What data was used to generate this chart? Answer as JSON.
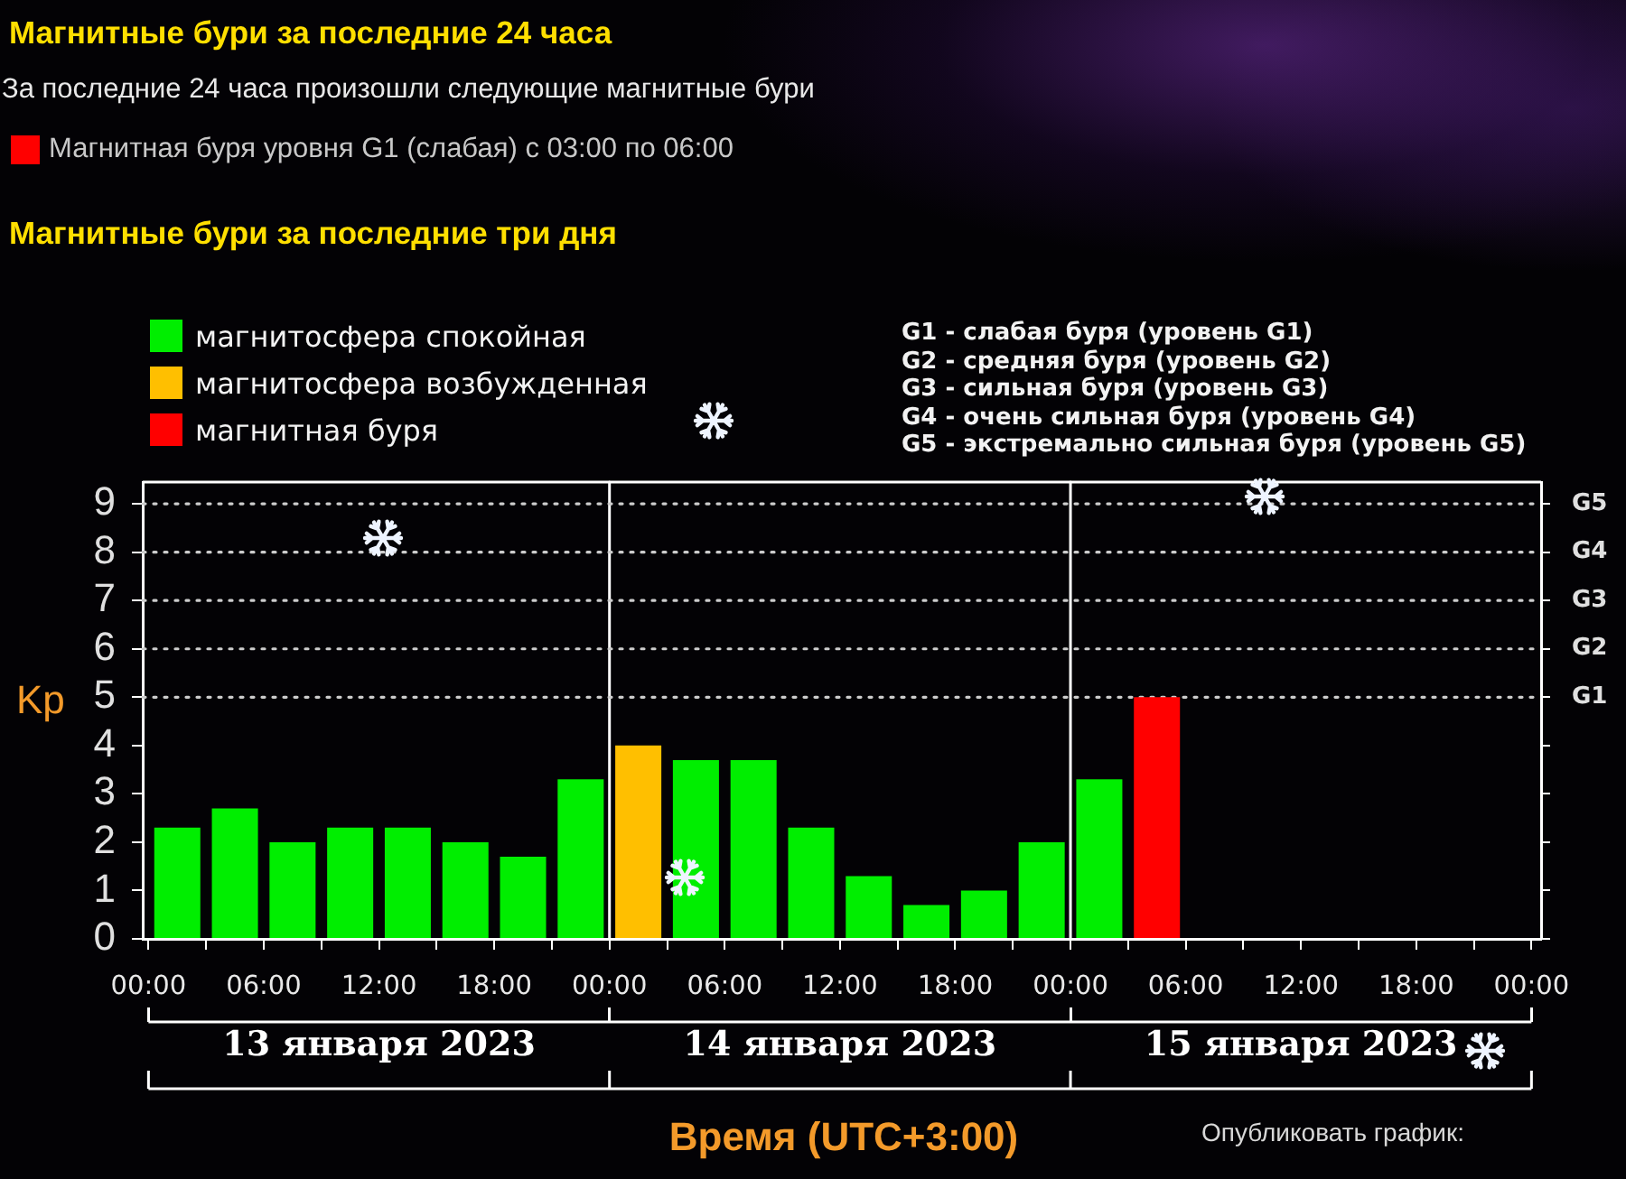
{
  "chart_data": {
    "type": "bar",
    "title": "Магнитные бури за последние 24 часа",
    "subtitle": "За последние 24 часа произошли следующие магнитные бури",
    "xlabel": "Время (UTC+3:00)",
    "ylabel": "Kp",
    "annotations": [
      "Магнитная буря уровня G1 (слабая) с 03:00 по 06:00",
      "Магнитные бури за последние три дня",
      "G1 - слабая буря (уровень G1)",
      "G2 - средняя буря (уровень G2)",
      "G3 - сильная буря (уровень G3)",
      "G4 - очень сильная буря (уровень G4)",
      "G5 - экстремально сильная буря (уровень G5)",
      "Опубликовать график:"
    ],
    "x": [
      "2023-01-13T01:30",
      "2023-01-13T04:30",
      "2023-01-13T07:30",
      "2023-01-13T10:30",
      "2023-01-13T13:30",
      "2023-01-13T16:30",
      "2023-01-13T19:30",
      "2023-01-13T22:30",
      "2023-01-14T01:30",
      "2023-01-14T04:30",
      "2023-01-14T07:30",
      "2023-01-14T10:30",
      "2023-01-14T13:30",
      "2023-01-14T16:30",
      "2023-01-14T19:30",
      "2023-01-14T22:30",
      "2023-01-15T01:30",
      "2023-01-15T04:30"
    ],
    "series": [
      {
        "name": "магнитосфера спокойная",
        "color": "#00ee00",
        "values": [
          2.3,
          2.7,
          2,
          2.3,
          2.3,
          2,
          1.7,
          3.3,
          null,
          3.7,
          3.7,
          2.3,
          1.3,
          0.7,
          1,
          2,
          3.3,
          null
        ]
      },
      {
        "name": "магнитосфера возбужденная",
        "color": "#ffbf00",
        "values": [
          null,
          null,
          null,
          null,
          null,
          null,
          null,
          null,
          4,
          null,
          null,
          null,
          null,
          null,
          null,
          null,
          null,
          null
        ]
      },
      {
        "name": "магнитная буря",
        "color": "#ff0000",
        "values": [
          null,
          null,
          null,
          null,
          null,
          null,
          null,
          null,
          null,
          null,
          null,
          null,
          null,
          null,
          null,
          null,
          null,
          5
        ]
      }
    ],
    "xlim": [
      "2023-01-12T23:42",
      "2023-01-16T00:30"
    ],
    "xticks": [
      {
        "value": "2023-01-13T00:00",
        "label": "00:00"
      },
      {
        "value": "2023-01-13T03:00",
        "label": null
      },
      {
        "value": "2023-01-13T06:00",
        "label": "06:00"
      },
      {
        "value": "2023-01-13T09:00",
        "label": null
      },
      {
        "value": "2023-01-13T12:00",
        "label": "12:00"
      },
      {
        "value": "2023-01-13T15:00",
        "label": null
      },
      {
        "value": "2023-01-13T18:00",
        "label": "18:00"
      },
      {
        "value": "2023-01-13T21:00",
        "label": null
      },
      {
        "value": "2023-01-14T00:00",
        "label": "00:00"
      },
      {
        "value": "2023-01-14T03:00",
        "label": null
      },
      {
        "value": "2023-01-14T06:00",
        "label": "06:00"
      },
      {
        "value": "2023-01-14T09:00",
        "label": null
      },
      {
        "value": "2023-01-14T12:00",
        "label": "12:00"
      },
      {
        "value": "2023-01-14T15:00",
        "label": null
      },
      {
        "value": "2023-01-14T18:00",
        "label": "18:00"
      },
      {
        "value": "2023-01-14T21:00",
        "label": null
      },
      {
        "value": "2023-01-15T00:00",
        "label": "00:00"
      },
      {
        "value": "2023-01-15T03:00",
        "label": null
      },
      {
        "value": "2023-01-15T06:00",
        "label": "06:00"
      },
      {
        "value": "2023-01-15T09:00",
        "label": null
      },
      {
        "value": "2023-01-15T12:00",
        "label": "12:00"
      },
      {
        "value": "2023-01-15T15:00",
        "label": null
      },
      {
        "value": "2023-01-15T18:00",
        "label": "18:00"
      },
      {
        "value": "2023-01-15T21:00",
        "label": null
      },
      {
        "value": "2023-01-16T00:00",
        "label": "00:00"
      }
    ],
    "x2lim": [
      "2023-01-12T23:42",
      "2023-01-16T00:30"
    ],
    "x2ticks": [
      {
        "value": "2023-01-13T00:00",
        "label": null
      },
      {
        "value": "2023-01-13T12:00",
        "label": "13 января 2023"
      },
      {
        "value": "2023-01-14T00:00",
        "label": null
      },
      {
        "value": "2023-01-14T12:00",
        "label": "14 января 2023"
      },
      {
        "value": "2023-01-15T00:00",
        "label": null
      },
      {
        "value": "2023-01-15T12:00",
        "label": "15 января 2023"
      },
      {
        "value": "2023-01-16T00:00",
        "label": null
      }
    ],
    "ylim": [
      0,
      9.45
    ],
    "yticks": [
      0,
      1,
      2,
      3,
      4,
      5,
      6,
      7,
      8,
      9
    ],
    "ref_lines": [
      {
        "axis": "x",
        "value": "2023-01-14T00:00",
        "color": "#ffffff"
      },
      {
        "axis": "x",
        "value": "2023-01-15T00:00",
        "color": "#ffffff"
      },
      {
        "axis": "y",
        "value": 5,
        "label": "G1",
        "color": "#cccccc",
        "line_style": "dotted"
      },
      {
        "axis": "y",
        "value": 6,
        "label": "G2",
        "color": "#cccccc",
        "line_style": "dotted"
      },
      {
        "axis": "y",
        "value": 7,
        "label": "G3",
        "color": "#cccccc",
        "line_style": "dotted"
      },
      {
        "axis": "y",
        "value": 8,
        "label": "G4",
        "color": "#cccccc",
        "line_style": "dotted"
      },
      {
        "axis": "y",
        "value": 9,
        "label": "G5",
        "color": "#cccccc",
        "line_style": "dotted"
      }
    ],
    "legend": "top left"
  }
}
